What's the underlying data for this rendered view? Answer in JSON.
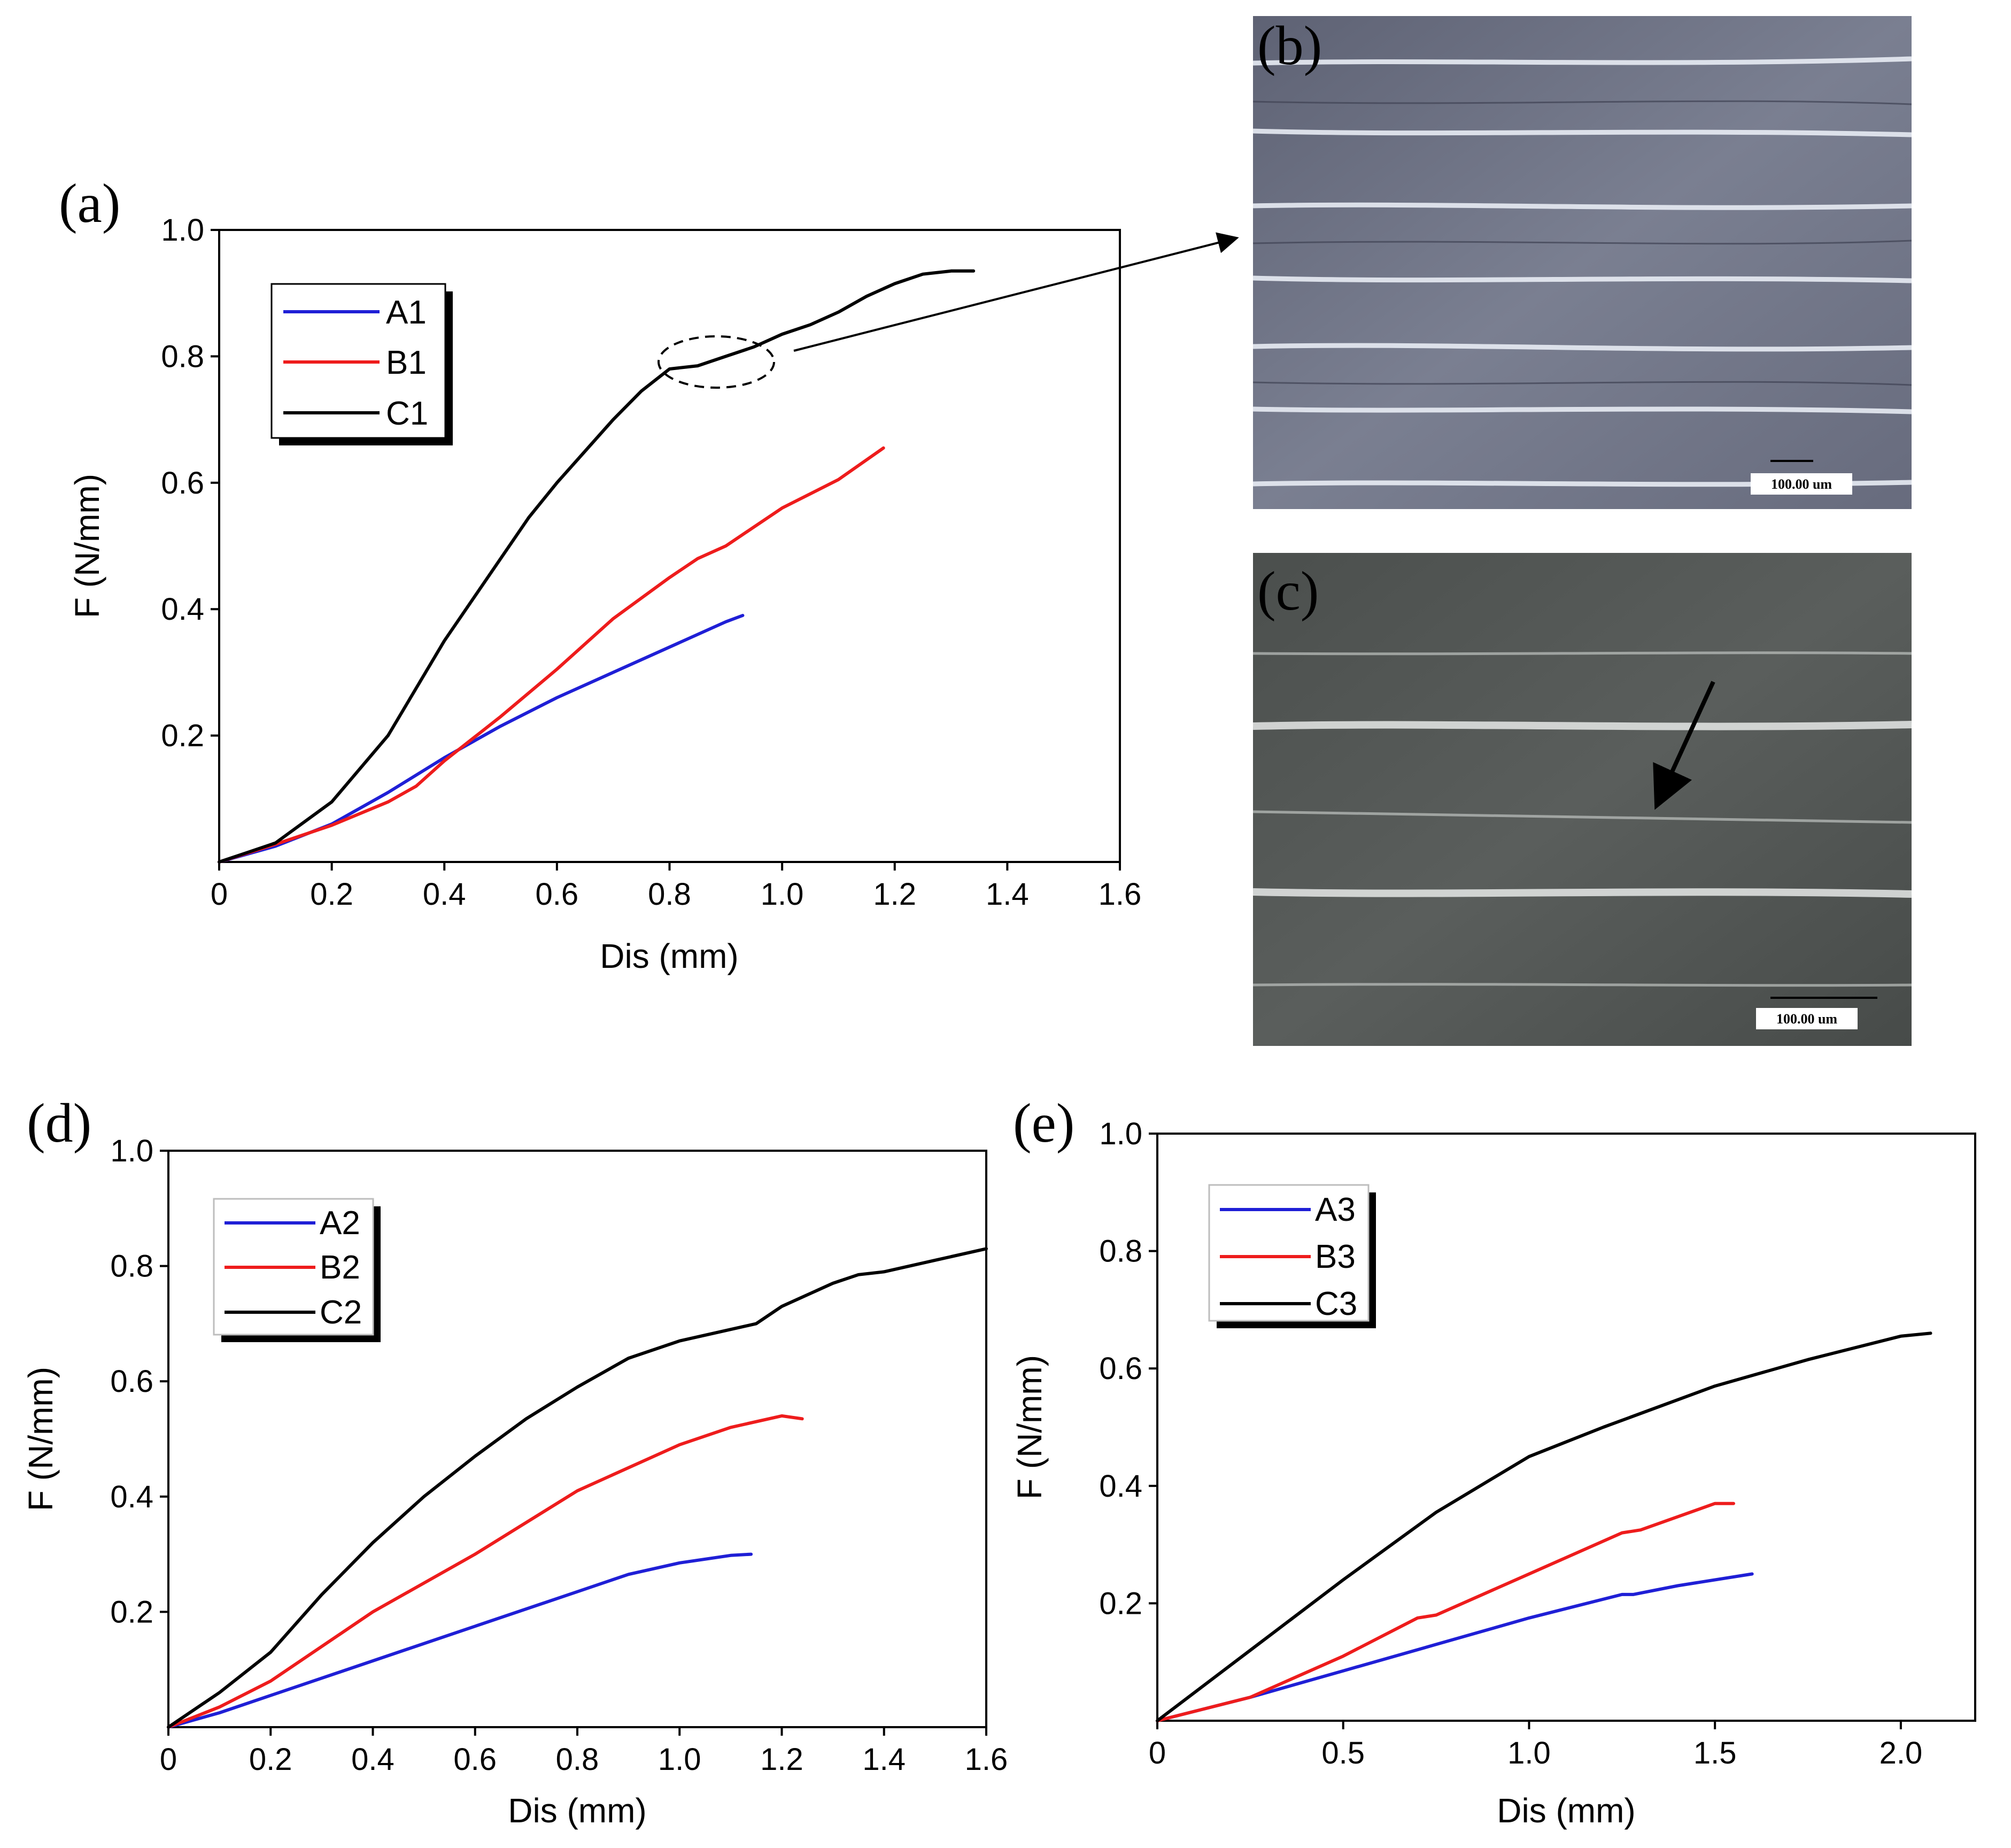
{
  "colors": {
    "A": "#1f1fd6",
    "B": "#ee1c1c",
    "C": "#000000"
  },
  "chart_data": [
    {
      "id": "a",
      "type": "line",
      "panel_label": "(a)",
      "xlabel": "Dis (mm)",
      "ylabel": "F (N/mm)",
      "xlim": [
        0,
        1.6
      ],
      "ylim": [
        0,
        1.0
      ],
      "x_ticks": [
        0,
        0.2,
        0.4,
        0.6,
        0.8,
        1.0,
        1.2,
        1.4,
        1.6
      ],
      "x_tick_labels": [
        "0",
        "0.2",
        "0.4",
        "0.6",
        "0.8",
        "1.0",
        "1.2",
        "1.4",
        "1.6"
      ],
      "y_ticks": [
        0.2,
        0.4,
        0.6,
        0.8,
        1.0
      ],
      "y_tick_labels": [
        "0.2",
        "0.4",
        "0.6",
        "0.8",
        "1.0"
      ],
      "legend_position": "top-left",
      "annotation": "dashed ellipse around C1 near 0.8 mm, arrow pointing to micrograph (b)",
      "series": [
        {
          "name": "A1",
          "color_key": "A",
          "points": [
            [
              0,
              0
            ],
            [
              0.1,
              0.025
            ],
            [
              0.2,
              0.06
            ],
            [
              0.3,
              0.11
            ],
            [
              0.4,
              0.165
            ],
            [
              0.5,
              0.215
            ],
            [
              0.6,
              0.26
            ],
            [
              0.7,
              0.3
            ],
            [
              0.8,
              0.34
            ],
            [
              0.9,
              0.38
            ],
            [
              0.93,
              0.39
            ]
          ]
        },
        {
          "name": "B1",
          "color_key": "B",
          "points": [
            [
              0,
              0
            ],
            [
              0.1,
              0.028
            ],
            [
              0.2,
              0.058
            ],
            [
              0.3,
              0.095
            ],
            [
              0.35,
              0.12
            ],
            [
              0.4,
              0.16
            ],
            [
              0.5,
              0.23
            ],
            [
              0.6,
              0.305
            ],
            [
              0.7,
              0.385
            ],
            [
              0.8,
              0.45
            ],
            [
              0.85,
              0.48
            ],
            [
              0.9,
              0.5
            ],
            [
              0.95,
              0.53
            ],
            [
              1.0,
              0.56
            ],
            [
              1.1,
              0.605
            ],
            [
              1.18,
              0.655
            ]
          ]
        },
        {
          "name": "C1",
          "color_key": "C",
          "points": [
            [
              0,
              0
            ],
            [
              0.05,
              0.015
            ],
            [
              0.1,
              0.03
            ],
            [
              0.2,
              0.095
            ],
            [
              0.3,
              0.2
            ],
            [
              0.4,
              0.35
            ],
            [
              0.5,
              0.48
            ],
            [
              0.55,
              0.545
            ],
            [
              0.6,
              0.6
            ],
            [
              0.7,
              0.7
            ],
            [
              0.75,
              0.745
            ],
            [
              0.8,
              0.78
            ],
            [
              0.85,
              0.785
            ],
            [
              0.9,
              0.8
            ],
            [
              0.95,
              0.815
            ],
            [
              1.0,
              0.835
            ],
            [
              1.05,
              0.85
            ],
            [
              1.1,
              0.87
            ],
            [
              1.15,
              0.895
            ],
            [
              1.2,
              0.915
            ],
            [
              1.25,
              0.93
            ],
            [
              1.3,
              0.935
            ],
            [
              1.34,
              0.935
            ]
          ]
        }
      ]
    },
    {
      "id": "d",
      "type": "line",
      "panel_label": "(d)",
      "xlabel": "Dis (mm)",
      "ylabel": "F (N/mm)",
      "xlim": [
        0,
        1.6
      ],
      "ylim": [
        0,
        1.0
      ],
      "x_ticks": [
        0,
        0.2,
        0.4,
        0.6,
        0.8,
        1.0,
        1.2,
        1.4,
        1.6
      ],
      "x_tick_labels": [
        "0",
        "0.2",
        "0.4",
        "0.6",
        "0.8",
        "1.0",
        "1.2",
        "1.4",
        "1.6"
      ],
      "y_ticks": [
        0.2,
        0.4,
        0.6,
        0.8,
        1.0
      ],
      "y_tick_labels": [
        "0.2",
        "0.4",
        "0.6",
        "0.8",
        "1.0"
      ],
      "legend_position": "top-left",
      "series": [
        {
          "name": "A2",
          "color_key": "A",
          "points": [
            [
              0,
              0
            ],
            [
              0.1,
              0.025
            ],
            [
              0.2,
              0.055
            ],
            [
              0.4,
              0.115
            ],
            [
              0.6,
              0.175
            ],
            [
              0.8,
              0.235
            ],
            [
              0.9,
              0.265
            ],
            [
              1.0,
              0.285
            ],
            [
              1.1,
              0.298
            ],
            [
              1.14,
              0.3
            ]
          ]
        },
        {
          "name": "B2",
          "color_key": "B",
          "points": [
            [
              0,
              0
            ],
            [
              0.1,
              0.035
            ],
            [
              0.2,
              0.08
            ],
            [
              0.4,
              0.2
            ],
            [
              0.6,
              0.3
            ],
            [
              0.8,
              0.41
            ],
            [
              0.9,
              0.45
            ],
            [
              1.0,
              0.49
            ],
            [
              1.1,
              0.52
            ],
            [
              1.2,
              0.54
            ],
            [
              1.24,
              0.535
            ]
          ]
        },
        {
          "name": "C2",
          "color_key": "C",
          "points": [
            [
              0,
              0
            ],
            [
              0.1,
              0.06
            ],
            [
              0.2,
              0.13
            ],
            [
              0.3,
              0.23
            ],
            [
              0.4,
              0.32
            ],
            [
              0.5,
              0.4
            ],
            [
              0.6,
              0.47
            ],
            [
              0.7,
              0.535
            ],
            [
              0.8,
              0.59
            ],
            [
              0.9,
              0.64
            ],
            [
              1.0,
              0.67
            ],
            [
              1.1,
              0.69
            ],
            [
              1.15,
              0.7
            ],
            [
              1.2,
              0.73
            ],
            [
              1.3,
              0.77
            ],
            [
              1.35,
              0.785
            ],
            [
              1.4,
              0.79
            ],
            [
              1.5,
              0.81
            ],
            [
              1.6,
              0.83
            ]
          ]
        }
      ]
    },
    {
      "id": "e",
      "type": "line",
      "panel_label": "(e)",
      "xlabel": "Dis (mm)",
      "ylabel": "F (N/mm)",
      "xlim": [
        0,
        2.2
      ],
      "ylim": [
        0,
        1.0
      ],
      "x_ticks": [
        0,
        0.5,
        1.0,
        1.5,
        2.0
      ],
      "x_tick_labels": [
        "0",
        "0.5",
        "1.0",
        "1.5",
        "2.0"
      ],
      "y_ticks": [
        0.2,
        0.4,
        0.6,
        0.8,
        1.0
      ],
      "y_tick_labels": [
        "0.2",
        "0.4",
        "0.6",
        "0.8",
        "1.0"
      ],
      "legend_position": "top-left",
      "series": [
        {
          "name": "A3",
          "color_key": "A",
          "points": [
            [
              0,
              0
            ],
            [
              0.25,
              0.04
            ],
            [
              0.5,
              0.085
            ],
            [
              0.75,
              0.13
            ],
            [
              1.0,
              0.175
            ],
            [
              1.25,
              0.215
            ],
            [
              1.28,
              0.215
            ],
            [
              1.4,
              0.23
            ],
            [
              1.6,
              0.25
            ]
          ]
        },
        {
          "name": "B3",
          "color_key": "B",
          "points": [
            [
              0,
              0
            ],
            [
              0.25,
              0.04
            ],
            [
              0.5,
              0.11
            ],
            [
              0.7,
              0.175
            ],
            [
              0.75,
              0.18
            ],
            [
              1.0,
              0.25
            ],
            [
              1.25,
              0.32
            ],
            [
              1.3,
              0.325
            ],
            [
              1.5,
              0.37
            ],
            [
              1.55,
              0.37
            ]
          ]
        },
        {
          "name": "C3",
          "color_key": "C",
          "points": [
            [
              0,
              0
            ],
            [
              0.25,
              0.12
            ],
            [
              0.5,
              0.24
            ],
            [
              0.75,
              0.355
            ],
            [
              1.0,
              0.45
            ],
            [
              1.2,
              0.5
            ],
            [
              1.5,
              0.57
            ],
            [
              1.75,
              0.615
            ],
            [
              2.0,
              0.655
            ],
            [
              2.08,
              0.66
            ]
          ]
        }
      ]
    }
  ],
  "micrographs": [
    {
      "id": "b",
      "label": "(b)",
      "scale_text": "100.00 um"
    },
    {
      "id": "c",
      "label": "(c)",
      "scale_text": "100.00 um"
    }
  ]
}
